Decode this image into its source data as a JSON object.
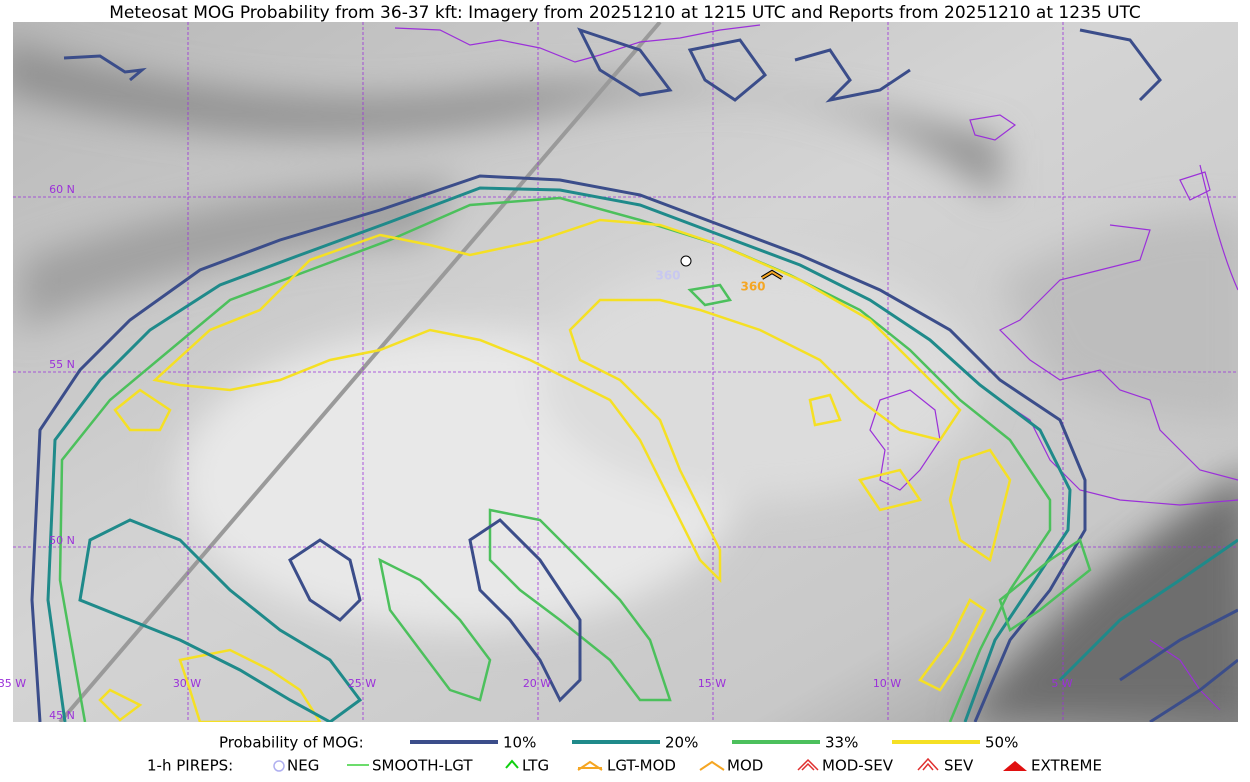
{
  "title": "Meteosat MOG Probability from 36-37 kft: Imagery from 20251210 at 1215 UTC and Reports from 20251210 at 1235 UTC",
  "grid_labels": {
    "lat": [
      "60 N",
      "55 N",
      "50 N",
      "45 N"
    ],
    "lon": [
      "35 W",
      "30 W",
      "25 W",
      "20 W",
      "15 W",
      "10 W",
      "5 W"
    ]
  },
  "reports": [
    "360",
    "360"
  ],
  "legend": {
    "probability": {
      "label": "Probability of MOG:",
      "items": [
        "10%",
        "20%",
        "33%",
        "50%"
      ]
    },
    "pireps": {
      "label": "1-h PIREPS:",
      "items": [
        "NEG",
        "SMOOTH-LGT",
        "LTG",
        "LGT-MOD",
        "MOD",
        "MOD-SEV",
        "SEV",
        "EXTREME"
      ]
    }
  }
}
